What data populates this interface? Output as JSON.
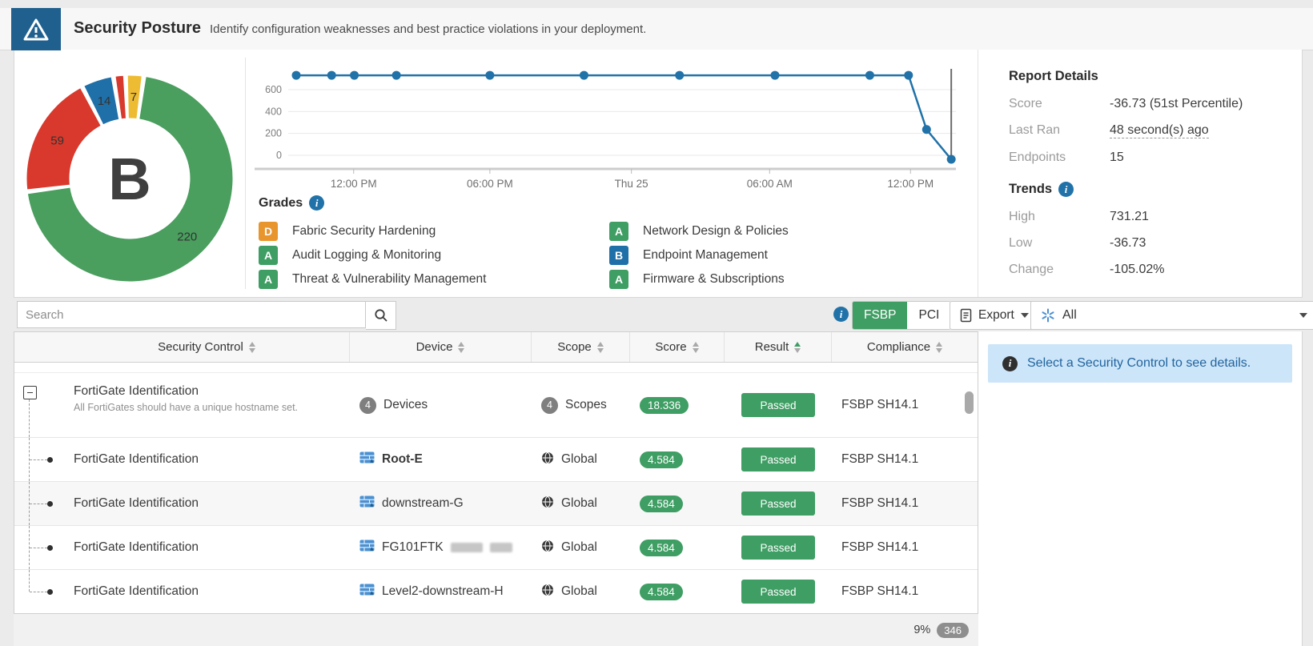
{
  "header": {
    "title": "Security Posture",
    "subtitle": "Identify configuration weaknesses and best practice violations in your deployment."
  },
  "chart_data": [
    {
      "type": "pie",
      "subtype": "donut",
      "title": "Security Posture Grade Distribution",
      "center_label": "B",
      "start_angle": 9,
      "segments": [
        {
          "label": "220",
          "value": 220,
          "color": "#4a9e5e",
          "grade": "A"
        },
        {
          "label": "59",
          "value": 59,
          "color": "#d8392c",
          "grade": "F"
        },
        {
          "label": "14",
          "value": 14,
          "color": "#1f6fa8",
          "grade": "B"
        },
        {
          "label": "",
          "value": 4,
          "color": "#d8392c",
          "grade": "F"
        },
        {
          "label": "7",
          "value": 7,
          "color": "#eebc33",
          "grade": "C"
        }
      ]
    },
    {
      "type": "line",
      "title": "Score Trend",
      "line_color": "#2172a8",
      "ylim": [
        -80,
        800
      ],
      "yticks": [
        0,
        200,
        400,
        600
      ],
      "xticks": [
        {
          "label": "12:00 PM",
          "f": 0.098
        },
        {
          "label": "06:00 PM",
          "f": 0.302
        },
        {
          "label": "Thu 25",
          "f": 0.514
        },
        {
          "label": "06:00 AM",
          "f": 0.721
        },
        {
          "label": "12:00 PM",
          "f": 0.932
        }
      ],
      "cursor_f": 0.993,
      "series": [
        {
          "name": "Score",
          "points": [
            {
              "f": 0.012,
              "v": 731.21
            },
            {
              "f": 0.065,
              "v": 731.21
            },
            {
              "f": 0.099,
              "v": 731.21
            },
            {
              "f": 0.162,
              "v": 731.21
            },
            {
              "f": 0.302,
              "v": 731.21
            },
            {
              "f": 0.443,
              "v": 731.21
            },
            {
              "f": 0.586,
              "v": 731.21
            },
            {
              "f": 0.729,
              "v": 731.21
            },
            {
              "f": 0.871,
              "v": 731.21
            },
            {
              "f": 0.929,
              "v": 731.21
            },
            {
              "f": 0.956,
              "v": 236.0
            },
            {
              "f": 0.993,
              "v": -36.73
            }
          ]
        }
      ]
    }
  ],
  "grades": {
    "title": "Grades",
    "items": [
      {
        "grade": "D",
        "color": "#e8952e",
        "label": "Fabric Security Hardening"
      },
      {
        "grade": "A",
        "color": "#3e9e63",
        "label": "Audit Logging & Monitoring"
      },
      {
        "grade": "A",
        "color": "#3e9e63",
        "label": "Threat & Vulnerability Management"
      },
      {
        "grade": "A",
        "color": "#3e9e63",
        "label": "Network Design & Policies"
      },
      {
        "grade": "B",
        "color": "#1f6fa8",
        "label": "Endpoint Management"
      },
      {
        "grade": "A",
        "color": "#3e9e63",
        "label": "Firmware & Subscriptions"
      }
    ]
  },
  "report": {
    "title": "Report Details",
    "rows": [
      {
        "label": "Score",
        "value": "-36.73 (51st Percentile)",
        "underline": false
      },
      {
        "label": "Last Ran",
        "value": "48 second(s) ago",
        "underline": true
      },
      {
        "label": "Endpoints",
        "value": "15",
        "underline": false
      }
    ],
    "trends_title": "Trends",
    "trend_rows": [
      {
        "label": "High",
        "value": "731.21"
      },
      {
        "label": "Low",
        "value": "-36.73"
      },
      {
        "label": "Change",
        "value": "-105.02%"
      }
    ]
  },
  "toolbar": {
    "search_placeholder": "Search",
    "standards": [
      {
        "label": "FSBP",
        "active": true
      },
      {
        "label": "PCI",
        "active": false
      }
    ],
    "export_label": "Export",
    "filter_label": "All"
  },
  "table": {
    "columns": [
      {
        "label": "",
        "sortable": false
      },
      {
        "label": "Security Control",
        "sortable": true
      },
      {
        "label": "Device",
        "sortable": true
      },
      {
        "label": "Scope",
        "sortable": true
      },
      {
        "label": "Score",
        "sortable": true
      },
      {
        "label": "Result",
        "sortable": true,
        "sorted": "asc"
      },
      {
        "label": "Compliance",
        "sortable": true
      }
    ],
    "rows": [
      {
        "type": "parent",
        "control": "FortiGate Identification",
        "desc": "All FortiGates should have a unique hostname set.",
        "device_count": "4",
        "device": "Devices",
        "scope_count": "4",
        "scope": "Scopes",
        "score": "18.336",
        "result": "Passed",
        "compliance": "FSBP SH14.1"
      },
      {
        "type": "child",
        "control": "FortiGate Identification",
        "device": "Root-E",
        "device_bold": true,
        "scope": "Global",
        "score": "4.584",
        "result": "Passed",
        "compliance": "FSBP SH14.1"
      },
      {
        "type": "child",
        "control": "FortiGate Identification",
        "device": "downstream-G",
        "shaded": true,
        "scope": "Global",
        "score": "4.584",
        "result": "Passed",
        "compliance": "FSBP SH14.1"
      },
      {
        "type": "child",
        "control": "FortiGate Identification",
        "device": "FG101FTK",
        "redacted": true,
        "scope": "Global",
        "score": "4.584",
        "result": "Passed",
        "compliance": "FSBP SH14.1"
      },
      {
        "type": "child",
        "control": "FortiGate Identification",
        "device": "Level2-downstream-H",
        "last": true,
        "scope": "Global",
        "score": "4.584",
        "result": "Passed",
        "compliance": "FSBP SH14.1"
      }
    ]
  },
  "footer": {
    "percent": "9%",
    "count": "346"
  },
  "detail_panel": {
    "message": "Select a Security Control to see details."
  }
}
